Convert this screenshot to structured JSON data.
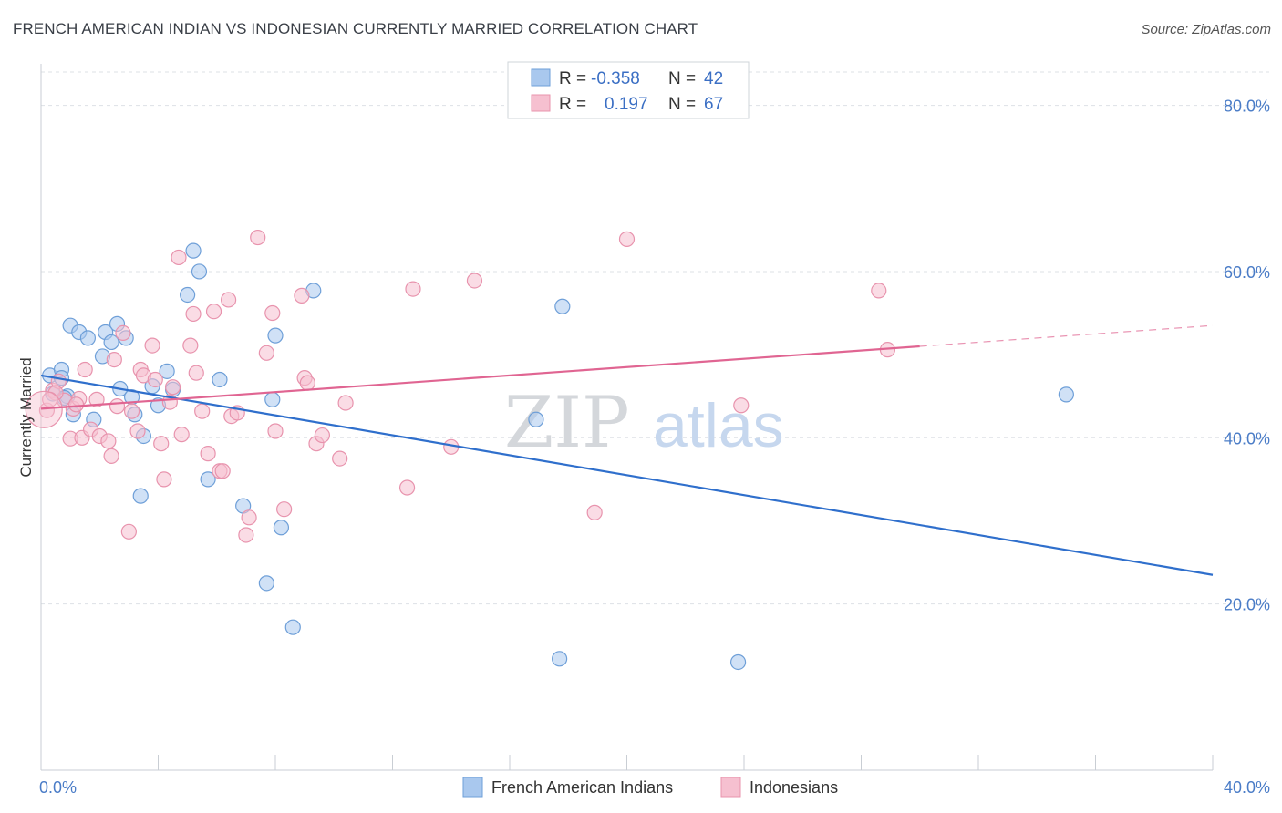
{
  "title": "FRENCH AMERICAN INDIAN VS INDONESIAN CURRENTLY MARRIED CORRELATION CHART",
  "source": "Source: ZipAtlas.com",
  "watermark": {
    "zip": "ZIP",
    "atlas": "atlas"
  },
  "colors": {
    "blue_fill": "#a9c8ee",
    "blue_stroke": "#6e9fd8",
    "blue_line": "#2f6fcc",
    "pink_fill": "#f6c0d0",
    "pink_stroke": "#e893ad",
    "pink_line": "#e06592",
    "grid": "#dde1e6",
    "axis_text": "#4a7cc7"
  },
  "legend": {
    "series": [
      {
        "r_label": "R =",
        "r_value": "-0.358",
        "n_label": "N =",
        "n_value": "42"
      },
      {
        "r_label": "R =",
        "r_value": "0.197",
        "n_label": "N =",
        "n_value": "67"
      }
    ]
  },
  "chart_data": {
    "type": "scatter",
    "title": "FRENCH AMERICAN INDIAN VS INDONESIAN CURRENTLY MARRIED CORRELATION CHART",
    "xlabel": "",
    "ylabel": "Currently Married",
    "xlim": [
      0,
      40
    ],
    "ylim": [
      0,
      85
    ],
    "x_tick_labels": [
      "0.0%",
      "40.0%"
    ],
    "y_ticks": [
      20,
      40,
      60,
      80
    ],
    "y_tick_labels": [
      "20.0%",
      "40.0%",
      "60.0%",
      "80.0%"
    ],
    "grid": true,
    "legend_position": "top-center",
    "series": [
      {
        "name": "French American Indians",
        "color": "#a9c8ee",
        "trend": {
          "x": [
            0,
            40
          ],
          "y": [
            47.5,
            23.5
          ],
          "style": "solid"
        },
        "points": [
          [
            0.3,
            47.5
          ],
          [
            0.7,
            48.2
          ],
          [
            0.7,
            47.2
          ],
          [
            0.9,
            45.0
          ],
          [
            1.1,
            42.8
          ],
          [
            1.0,
            53.5
          ],
          [
            1.3,
            52.7
          ],
          [
            1.6,
            52.0
          ],
          [
            1.8,
            42.2
          ],
          [
            2.1,
            49.8
          ],
          [
            2.2,
            52.7
          ],
          [
            2.4,
            51.5
          ],
          [
            2.6,
            53.7
          ],
          [
            2.9,
            52.0
          ],
          [
            2.7,
            45.9
          ],
          [
            3.1,
            44.9
          ],
          [
            3.2,
            42.8
          ],
          [
            3.5,
            40.2
          ],
          [
            3.8,
            46.2
          ],
          [
            4.0,
            43.9
          ],
          [
            4.3,
            48.0
          ],
          [
            4.5,
            45.8
          ],
          [
            5.0,
            57.2
          ],
          [
            5.2,
            62.5
          ],
          [
            5.4,
            60.0
          ],
          [
            5.7,
            35.0
          ],
          [
            6.1,
            47.0
          ],
          [
            6.9,
            31.8
          ],
          [
            7.7,
            22.5
          ],
          [
            7.9,
            44.6
          ],
          [
            8.0,
            52.3
          ],
          [
            8.2,
            29.2
          ],
          [
            8.6,
            17.2
          ],
          [
            9.3,
            57.7
          ],
          [
            3.4,
            33.0
          ],
          [
            16.9,
            42.2
          ],
          [
            17.8,
            55.8
          ],
          [
            17.7,
            13.4
          ],
          [
            23.8,
            13.0
          ],
          [
            35.0,
            45.2
          ],
          [
            0.4,
            45.3
          ],
          [
            0.8,
            44.8
          ]
        ]
      },
      {
        "name": "Indonesians",
        "color": "#f6c0d0",
        "trend": {
          "x": [
            0,
            30
          ],
          "y": [
            43.5,
            51.0
          ],
          "dashed_to": [
            40,
            53.5
          ],
          "style": "solid"
        },
        "points": [
          [
            0.2,
            43.3
          ],
          [
            0.4,
            45.7
          ],
          [
            0.6,
            46.8
          ],
          [
            0.8,
            44.5
          ],
          [
            1.0,
            39.9
          ],
          [
            1.1,
            43.5
          ],
          [
            1.3,
            44.7
          ],
          [
            1.4,
            40.0
          ],
          [
            1.5,
            48.2
          ],
          [
            1.7,
            41.0
          ],
          [
            1.9,
            44.6
          ],
          [
            2.0,
            40.2
          ],
          [
            2.3,
            39.6
          ],
          [
            2.4,
            37.8
          ],
          [
            2.5,
            49.4
          ],
          [
            2.6,
            43.8
          ],
          [
            2.8,
            52.6
          ],
          [
            3.1,
            43.2
          ],
          [
            3.3,
            40.8
          ],
          [
            3.4,
            48.2
          ],
          [
            3.5,
            47.5
          ],
          [
            3.8,
            51.1
          ],
          [
            3.9,
            47.0
          ],
          [
            4.1,
            39.3
          ],
          [
            4.2,
            35.0
          ],
          [
            4.4,
            44.3
          ],
          [
            4.5,
            46.1
          ],
          [
            4.8,
            40.4
          ],
          [
            4.7,
            61.7
          ],
          [
            5.1,
            51.1
          ],
          [
            5.2,
            54.9
          ],
          [
            5.3,
            47.8
          ],
          [
            5.5,
            43.2
          ],
          [
            5.7,
            38.1
          ],
          [
            5.9,
            55.2
          ],
          [
            6.1,
            36.0
          ],
          [
            6.4,
            56.6
          ],
          [
            6.5,
            42.6
          ],
          [
            6.7,
            43.0
          ],
          [
            7.0,
            28.3
          ],
          [
            7.1,
            30.4
          ],
          [
            7.4,
            64.1
          ],
          [
            7.7,
            50.2
          ],
          [
            7.9,
            55.0
          ],
          [
            8.0,
            40.8
          ],
          [
            8.3,
            31.4
          ],
          [
            8.9,
            57.1
          ],
          [
            9.0,
            47.2
          ],
          [
            9.1,
            46.6
          ],
          [
            9.4,
            39.3
          ],
          [
            9.6,
            40.3
          ],
          [
            10.2,
            37.5
          ],
          [
            10.4,
            44.2
          ],
          [
            12.5,
            34.0
          ],
          [
            12.7,
            57.9
          ],
          [
            14.0,
            38.9
          ],
          [
            14.8,
            58.9
          ],
          [
            18.9,
            31.0
          ],
          [
            20.0,
            63.9
          ],
          [
            23.9,
            43.9
          ],
          [
            28.6,
            57.7
          ],
          [
            28.9,
            50.6
          ],
          [
            3.0,
            28.7
          ],
          [
            6.2,
            36.0
          ],
          [
            0.5,
            45.4
          ],
          [
            1.2,
            44.0
          ],
          [
            0.3,
            44.6
          ]
        ]
      }
    ]
  }
}
